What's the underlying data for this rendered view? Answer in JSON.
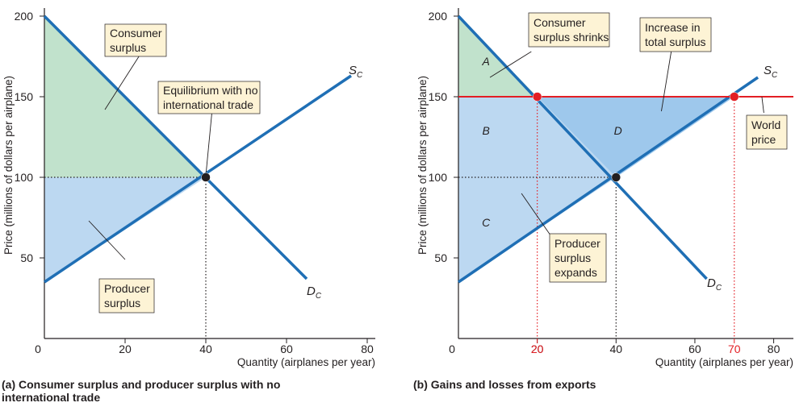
{
  "chart_data": [
    {
      "type": "line",
      "title": "(a) Consumer surplus and producer surplus with no international trade",
      "xlabel": "Quantity (airplanes per year)",
      "ylabel": "Price (millions of dollars per airplane)",
      "xlim": [
        0,
        82
      ],
      "ylim": [
        0,
        205
      ],
      "x_ticks": [
        0,
        20,
        40,
        60,
        80
      ],
      "y_ticks": [
        50,
        100,
        150,
        200
      ],
      "series": [
        {
          "name": "S_C",
          "label_main": "S",
          "label_sub": "C",
          "x": [
            0,
            76
          ],
          "y": [
            35,
            163
          ],
          "color": "#1f6fb5"
        },
        {
          "name": "D_C",
          "label_main": "D",
          "label_sub": "C",
          "x": [
            0,
            65
          ],
          "y": [
            200,
            37
          ],
          "color": "#1f6fb5"
        }
      ],
      "regions": [
        {
          "name": "consumer-surplus",
          "points": [
            [
              0,
              200
            ],
            [
              0,
              100
            ],
            [
              40,
              100
            ]
          ],
          "color": "#c1e2cc"
        },
        {
          "name": "producer-surplus",
          "points": [
            [
              0,
              100
            ],
            [
              0,
              35
            ],
            [
              40,
              100
            ]
          ],
          "color": "#bcd8f1"
        }
      ],
      "guides": [
        {
          "x": [
            0,
            40
          ],
          "y": [
            100,
            100
          ],
          "color": "#231f20"
        },
        {
          "x": [
            40,
            40
          ],
          "y": [
            100,
            0
          ],
          "color": "#231f20"
        }
      ],
      "points": [
        {
          "x": 40,
          "y": 100,
          "color": "#231f20"
        }
      ],
      "annotations": [
        {
          "text_lines": [
            "Consumer",
            "surplus"
          ],
          "box": true,
          "pointer": [
            [
              27,
              189
            ],
            [
              15,
              142
            ]
          ]
        },
        {
          "text_lines": [
            "Producer",
            "surplus"
          ],
          "box": true,
          "pointer": [
            [
              20,
              49
            ],
            [
              11,
              73
            ]
          ]
        },
        {
          "text_lines": [
            "Equilibrium with no",
            "international trade"
          ],
          "box": true,
          "pointer": [
            [
              41.5,
              140
            ],
            [
              40,
              101
            ]
          ]
        }
      ],
      "bottom_extra_ticks": []
    },
    {
      "type": "line",
      "title": "(b) Gains and losses from exports",
      "xlabel": "Quantity (airplanes per year)",
      "ylabel": "Price (millions of dollars per airplane)",
      "xlim": [
        0,
        85
      ],
      "ylim": [
        0,
        205
      ],
      "x_ticks": [
        0,
        20,
        40,
        60,
        80
      ],
      "y_ticks": [
        50,
        100,
        150,
        200
      ],
      "series": [
        {
          "name": "S_C",
          "label_main": "S",
          "label_sub": "C",
          "x": [
            0,
            76
          ],
          "y": [
            35,
            162
          ],
          "color": "#1f6fb5"
        },
        {
          "name": "D_C",
          "label_main": "D",
          "label_sub": "C",
          "x": [
            0,
            63
          ],
          "y": [
            200,
            37
          ],
          "color": "#1f6fb5"
        },
        {
          "name": "World price",
          "x": [
            0,
            85
          ],
          "y": [
            150,
            150
          ],
          "color": "#e31e24"
        }
      ],
      "regions": [
        {
          "name": "A",
          "points": [
            [
              0,
              200
            ],
            [
              0,
              150
            ],
            [
              20,
              150
            ]
          ],
          "color": "#c1e2cc"
        },
        {
          "name": "B",
          "points": [
            [
              0,
              150
            ],
            [
              20,
              150
            ],
            [
              40,
              100
            ],
            [
              0,
              100
            ]
          ],
          "color": "#bcd8f1"
        },
        {
          "name": "C",
          "points": [
            [
              0,
              100
            ],
            [
              40,
              100
            ],
            [
              0,
              35
            ]
          ],
          "color": "#bcd8f1"
        },
        {
          "name": "D",
          "points": [
            [
              20,
              150
            ],
            [
              70,
              150
            ],
            [
              40,
              100
            ]
          ],
          "color": "#9ec8ec"
        }
      ],
      "region_labels": [
        {
          "text": "A",
          "x": 7,
          "y": 172
        },
        {
          "text": "B",
          "x": 7,
          "y": 129
        },
        {
          "text": "C",
          "x": 7,
          "y": 72
        },
        {
          "text": "D",
          "x": 40.5,
          "y": 129
        }
      ],
      "guides": [
        {
          "x": [
            0,
            40
          ],
          "y": [
            100,
            100
          ],
          "color": "#231f20"
        },
        {
          "x": [
            40,
            40
          ],
          "y": [
            100,
            0
          ],
          "color": "#231f20"
        },
        {
          "x": [
            20,
            20
          ],
          "y": [
            150,
            0
          ],
          "color": "#e31e24"
        },
        {
          "x": [
            70,
            70
          ],
          "y": [
            150,
            0
          ],
          "color": "#e31e24"
        }
      ],
      "points": [
        {
          "x": 20,
          "y": 150,
          "color": "#e31e24"
        },
        {
          "x": 70,
          "y": 150,
          "color": "#e31e24"
        },
        {
          "x": 40,
          "y": 100,
          "color": "#231f20"
        }
      ],
      "annotations": [
        {
          "text_lines": [
            "Consumer",
            "surplus shrinks"
          ],
          "box": true,
          "pointer": [
            [
              18.5,
              178
            ],
            [
              8,
              162
            ]
          ]
        },
        {
          "text_lines": [
            "Increase in",
            "total surplus"
          ],
          "box": true,
          "pointer": [
            [
              54,
              178
            ],
            [
              51.5,
              141
            ]
          ]
        },
        {
          "text_lines": [
            "Producer",
            "surplus",
            "expands"
          ],
          "box": true,
          "pointer": [
            [
              24.5,
              60
            ],
            [
              16,
              90
            ]
          ]
        },
        {
          "text_lines": [
            "World",
            "price"
          ],
          "box": true,
          "pointer": [
            [
              77.5,
              140
            ],
            [
              77,
              150
            ]
          ]
        }
      ],
      "bottom_extra_ticks": [
        {
          "value": 20,
          "color": "#e31e24"
        },
        {
          "value": 70,
          "color": "#e31e24"
        }
      ]
    }
  ]
}
